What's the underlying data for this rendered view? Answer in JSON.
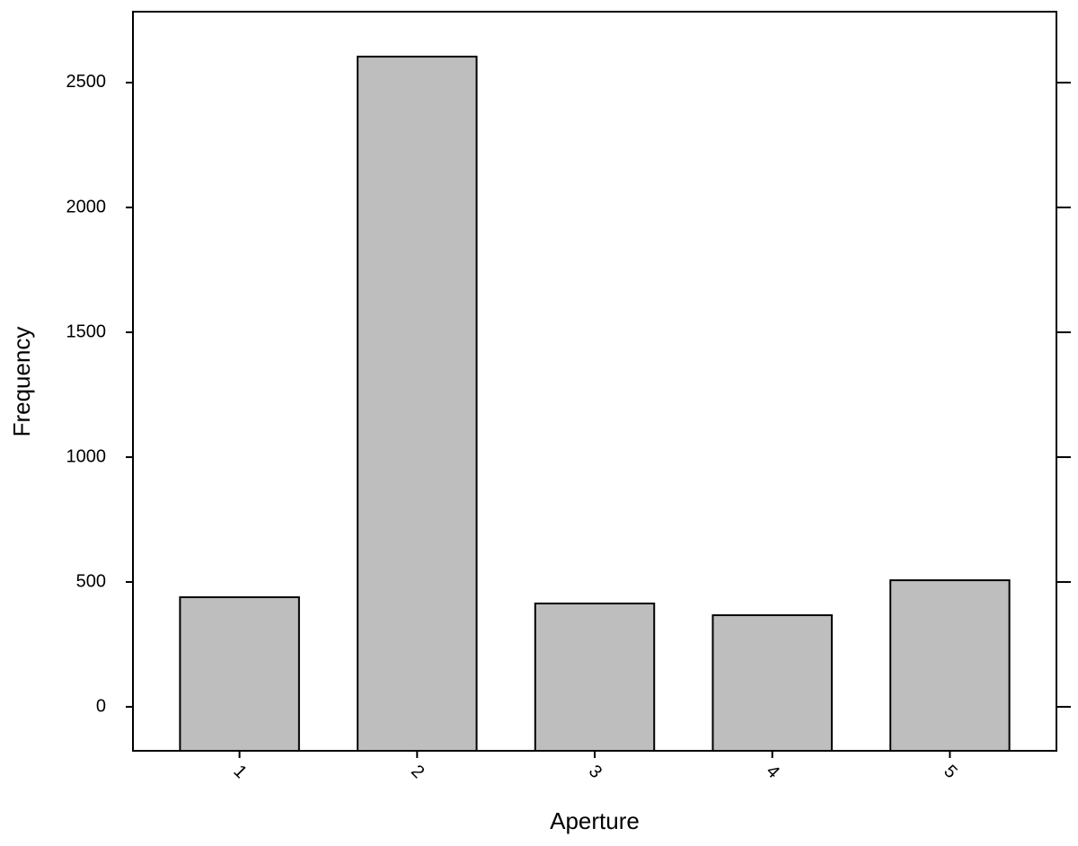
{
  "chart_data": {
    "type": "bar",
    "x_label": "Aperture",
    "y_label": "Frequency",
    "categories": [
      "1",
      "2",
      "3",
      "4",
      "5"
    ],
    "values": [
      439,
      2604,
      414,
      367,
      507
    ],
    "color": "#bebebe",
    "ylim": [
      -176,
      2784
    ],
    "yticks": [
      0,
      500,
      1000,
      1500,
      2000,
      2500
    ],
    "grid": false
  }
}
